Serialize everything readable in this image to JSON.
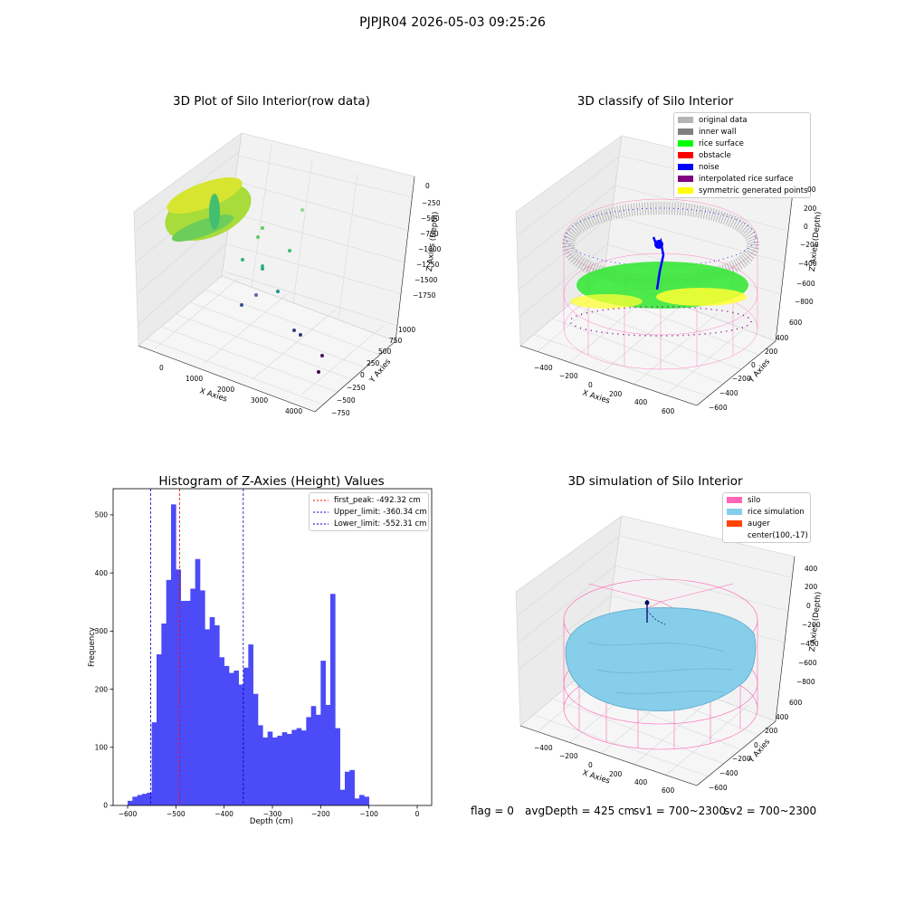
{
  "suptitle": "PJPJR04 2026-05-03 09:25:26",
  "footer": {
    "flag": "flag = 0",
    "avg_depth": "avgDepth = 425 cm",
    "sv1": "sv1 = 700~2300",
    "sv2": "sv2 = 700~2300"
  },
  "colors": {
    "hist_bar": "#4b4bf7",
    "first_peak_line": "#ff0000",
    "limit_line": "#0000c8",
    "silo_mesh": "#ff66b4",
    "rice_surface": "#87ceeb",
    "auger": "#ff4500"
  },
  "chart_data": [
    {
      "type": "scatter",
      "title": "3D Plot of Silo Interior(row data)",
      "xlabel": "X Axies",
      "ylabel": "Y Axies",
      "zlabel": "Z Axies (Depth)",
      "x_ticks": [
        "0",
        "1000",
        "2000",
        "3000",
        "4000"
      ],
      "y_ticks": [
        "−750",
        "−500",
        "−250",
        "0",
        "250",
        "500",
        "750",
        "1000"
      ],
      "z_ticks": [
        "0",
        "−250",
        "−500",
        "−750",
        "−1000",
        "−1250",
        "−1500",
        "−1750"
      ]
    },
    {
      "type": "scatter",
      "title": "3D classify of Silo Interior",
      "xlabel": "X Axies",
      "ylabel": "Y Axies",
      "zlabel": "Z Axies (Depth)",
      "x_ticks": [
        "−400",
        "−200",
        "0",
        "200",
        "400",
        "600"
      ],
      "y_ticks": [
        "−600",
        "−400",
        "−200",
        "0",
        "200",
        "400",
        "600"
      ],
      "z_ticks": [
        "200",
        "0",
        "−200",
        "−400",
        "−600",
        "−800"
      ],
      "z_ticks_top_partial": "00",
      "legend": [
        {
          "label": "original data",
          "color": "#b4b4b4"
        },
        {
          "label": "inner wall",
          "color": "#808080"
        },
        {
          "label": "rice surface",
          "color": "#00ff00"
        },
        {
          "label": "obstacle",
          "color": "#ff0000"
        },
        {
          "label": "noise",
          "color": "#0000ff"
        },
        {
          "label": "interpolated rice surface",
          "color": "#800080"
        },
        {
          "label": "symmetric generated points",
          "color": "#ffff00"
        }
      ]
    },
    {
      "type": "bar",
      "title": "Histogram of Z-Axies (Height) Values",
      "xlabel": "Depth (cm)",
      "ylabel": "Frequency",
      "xlim": [
        -630,
        30
      ],
      "ylim": [
        0,
        545
      ],
      "x_ticks": [
        -600,
        -500,
        -400,
        -300,
        -200,
        -100,
        0
      ],
      "x_tick_labels": [
        "−600",
        "−500",
        "−400",
        "−300",
        "−200",
        "−100",
        "0"
      ],
      "y_ticks": [
        0,
        100,
        200,
        300,
        400,
        500
      ],
      "y_tick_labels": [
        "0",
        "100",
        "200",
        "300",
        "400",
        "500"
      ],
      "bin_start": -600,
      "bin_width": 10,
      "values": [
        8,
        15,
        18,
        20,
        22,
        143,
        260,
        313,
        388,
        518,
        406,
        352,
        352,
        373,
        424,
        370,
        303,
        324,
        310,
        255,
        240,
        228,
        232,
        208,
        237,
        277,
        192,
        138,
        117,
        127,
        117,
        120,
        126,
        123,
        130,
        133,
        129,
        152,
        171,
        156,
        249,
        173,
        364,
        133,
        27,
        58,
        61,
        12,
        18,
        15
      ],
      "lines": [
        {
          "label": "first_peak: -492.32 cm",
          "x": -492.32,
          "color": "#ff0000"
        },
        {
          "label": "Upper_limit: -360.34 cm",
          "x": -360.34,
          "color": "#0000c8"
        },
        {
          "label": "Lower_limit: -552.31 cm",
          "x": -552.31,
          "color": "#0000c8"
        }
      ]
    },
    {
      "type": "scatter",
      "title": "3D simulation of Silo Interior",
      "xlabel": "X Axies",
      "ylabel": "Y Axies",
      "zlabel": "Z Axies (Depth)",
      "x_ticks": [
        "−400",
        "−200",
        "0",
        "200",
        "400",
        "600"
      ],
      "y_ticks": [
        "−600",
        "−400",
        "−200",
        "0",
        "200",
        "400",
        "600"
      ],
      "z_ticks": [
        "400",
        "200",
        "0",
        "−200",
        "−400",
        "−600",
        "−800"
      ],
      "legend": [
        {
          "label": "silo",
          "color": "#ff66b4"
        },
        {
          "label": "rice simulation",
          "color": "#87ceeb"
        },
        {
          "label": "auger",
          "color": "#ff4500"
        },
        {
          "label": "center(100,-17)",
          "color": ""
        }
      ]
    }
  ]
}
